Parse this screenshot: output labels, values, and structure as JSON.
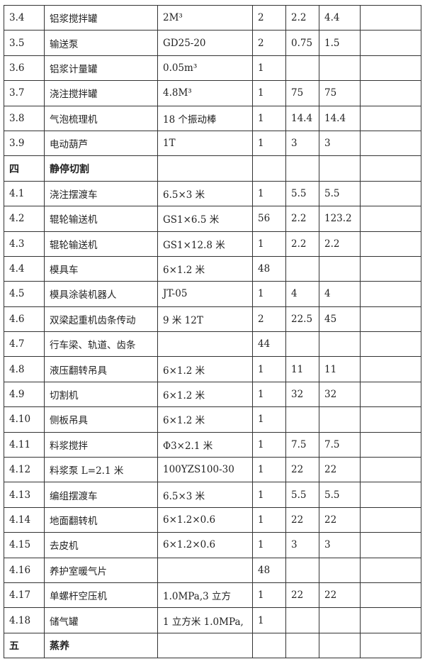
{
  "rows": [
    {
      "no": "3.4",
      "name": "铝浆搅拌罐",
      "spec": "2M³",
      "qty": "2",
      "power": "2.2",
      "total": "4.4",
      "note": ""
    },
    {
      "no": "3.5",
      "name": "输送泵",
      "spec": "GD25-20",
      "qty": "2",
      "power": "0.75",
      "total": "1.5",
      "note": ""
    },
    {
      "no": "3.6",
      "name": "铝浆计量罐",
      "spec": "0.05m³",
      "qty": "1",
      "power": "",
      "total": "",
      "note": ""
    },
    {
      "no": "3.7",
      "name": "浇注搅拌罐",
      "spec": "4.8M³",
      "qty": "1",
      "power": "75",
      "total": "75",
      "note": ""
    },
    {
      "no": "3.8",
      "name": "气泡梳理机",
      "spec": "18 个振动棒",
      "qty": "1",
      "power": "14.4",
      "total": "14.4",
      "note": ""
    },
    {
      "no": "3.9",
      "name": "电动葫芦",
      "spec": "1T",
      "qty": "1",
      "power": "3",
      "total": "3",
      "note": ""
    },
    {
      "no": "四",
      "name": "静停切割",
      "spec": "",
      "qty": "",
      "power": "",
      "total": "",
      "note": "",
      "section": true
    },
    {
      "no": "4.1",
      "name": "浇注摆渡车",
      "spec": "6.5×3 米",
      "qty": "1",
      "power": "5.5",
      "total": "5.5",
      "note": ""
    },
    {
      "no": "4.2",
      "name": "辊轮输送机",
      "spec": "GS1×6.5 米",
      "qty": "56",
      "power": "2.2",
      "total": "123.2",
      "note": ""
    },
    {
      "no": "4.3",
      "name": "辊轮输送机",
      "spec": "GS1×12.8 米",
      "qty": "1",
      "power": "2.2",
      "total": "2.2",
      "note": ""
    },
    {
      "no": "4.4",
      "name": "模具车",
      "spec": "6×1.2 米",
      "qty": "48",
      "power": "",
      "total": "",
      "note": ""
    },
    {
      "no": "4.5",
      "name": "模具涂装机器人",
      "spec": "JT-05",
      "qty": "1",
      "power": "4",
      "total": "4",
      "note": ""
    },
    {
      "no": "4.6",
      "name": "双梁起重机齿条传动",
      "spec": "9 米 12T",
      "qty": "2",
      "power": "22.5",
      "total": "45",
      "note": ""
    },
    {
      "no": "4.7",
      "name": "行车梁、轨道、齿条",
      "spec": "",
      "qty": "44",
      "power": "",
      "total": "",
      "note": ""
    },
    {
      "no": "4.8",
      "name": "液压翻转吊具",
      "spec": "6×1.2 米",
      "qty": "1",
      "power": "11",
      "total": "11",
      "note": ""
    },
    {
      "no": "4.9",
      "name": "切割机",
      "spec": "6×1.2 米",
      "qty": "1",
      "power": "32",
      "total": "32",
      "note": ""
    },
    {
      "no": "4.10",
      "name": "侧板吊具",
      "spec": "6×1.2 米",
      "qty": "1",
      "power": "",
      "total": "",
      "note": ""
    },
    {
      "no": "4.11",
      "name": "料浆搅拌",
      "spec": "Φ3×2.1 米",
      "qty": "1",
      "power": "7.5",
      "total": "7.5",
      "note": ""
    },
    {
      "no": "4.12",
      "name": "料浆泵 L=2.1 米",
      "spec": "100YZS100-30",
      "qty": "1",
      "power": "22",
      "total": "22",
      "note": ""
    },
    {
      "no": "4.13",
      "name": "编组摆渡车",
      "spec": "6.5×3 米",
      "qty": "1",
      "power": "5.5",
      "total": "5.5",
      "note": ""
    },
    {
      "no": "4.14",
      "name": "地面翻转机",
      "spec": "6×1.2×0.6",
      "qty": "1",
      "power": "22",
      "total": "22",
      "note": ""
    },
    {
      "no": "4.15",
      "name": "去皮机",
      "spec": "6×1.2×0.6",
      "qty": "1",
      "power": "3",
      "total": "3",
      "note": ""
    },
    {
      "no": "4.16",
      "name": "养护室暖气片",
      "spec": "",
      "qty": "48",
      "power": "",
      "total": "",
      "note": ""
    },
    {
      "no": "4.17",
      "name": "单螺杆空压机",
      "spec": "1.0MPa,3 立方",
      "qty": "1",
      "power": "22",
      "total": "22",
      "note": ""
    },
    {
      "no": "4.18",
      "name": "储气罐",
      "spec": "1 立方米 1.0MPa,",
      "qty": "1",
      "power": "",
      "total": "",
      "note": ""
    },
    {
      "no": "五",
      "name": "蒸养",
      "spec": "",
      "qty": "",
      "power": "",
      "total": "",
      "note": "",
      "section": true
    }
  ]
}
